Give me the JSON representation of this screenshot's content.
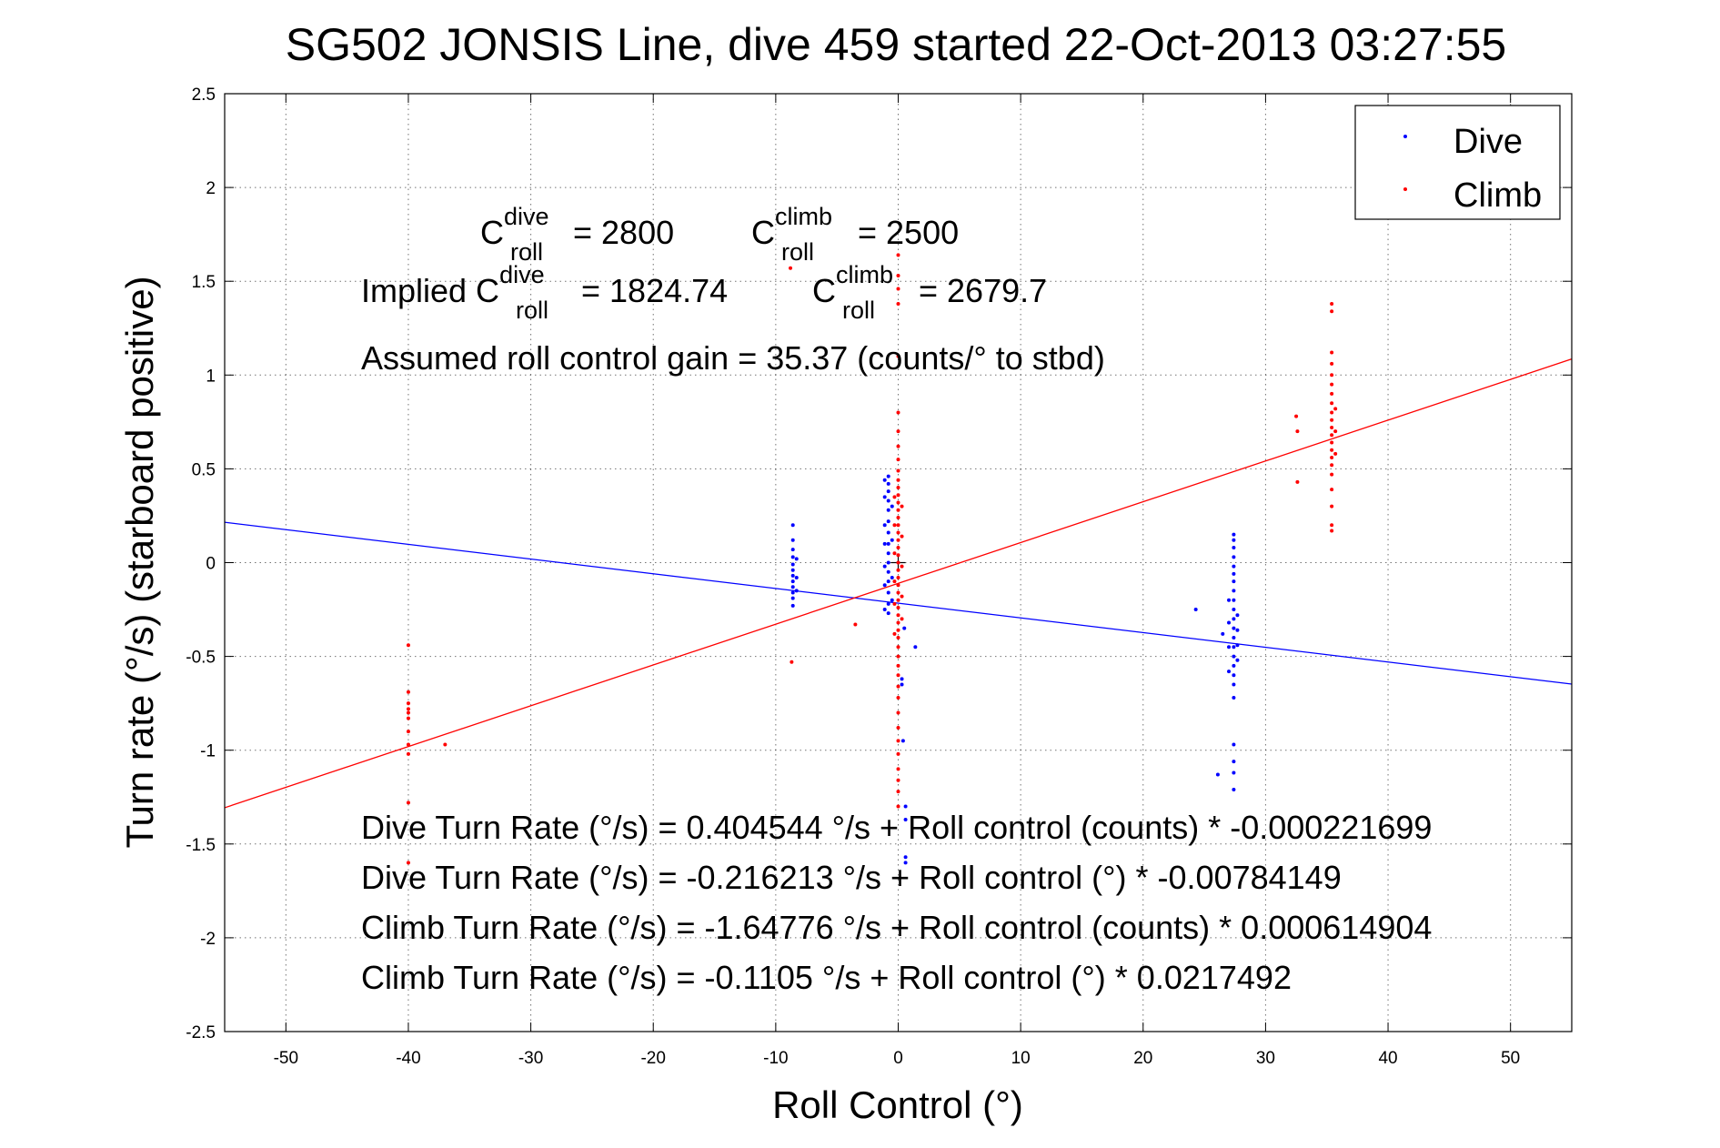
{
  "chart_data": {
    "type": "scatter",
    "title": "SG502 JONSIS Line, dive 459 started 22-Oct-2013 03:27:55",
    "xlabel": "Roll Control (°)",
    "ylabel": "Turn rate (°/s) (starboard positive)",
    "xlim": [
      -55,
      55
    ],
    "ylim": [
      -2.5,
      2.5
    ],
    "xticks": [
      -50,
      -40,
      -30,
      -20,
      -10,
      0,
      10,
      20,
      30,
      40,
      50
    ],
    "yticks": [
      -2.5,
      -2,
      -1.5,
      -1,
      -0.5,
      0,
      0.5,
      1,
      1.5,
      2,
      2.5
    ],
    "xtick_labels": [
      "-50",
      "-40",
      "-30",
      "-20",
      "-10",
      "0",
      "10",
      "20",
      "30",
      "40",
      "50"
    ],
    "ytick_labels": [
      "-2.5",
      "-2",
      "-1.5",
      "-1",
      "-0.5",
      "0",
      "0.5",
      "1",
      "1.5",
      "2",
      "2.5"
    ],
    "grid": true,
    "legend_position": "top-right",
    "colors": {
      "dive": "#0000ff",
      "climb": "#ff0000"
    },
    "legend": {
      "dive": "Dive",
      "climb": "Climb"
    },
    "series": [
      {
        "name": "Dive",
        "color": "#0000ff",
        "points": [
          [
            -8.6,
            0.2
          ],
          [
            -8.6,
            0.12
          ],
          [
            -8.6,
            0.07
          ],
          [
            -8.6,
            0.03
          ],
          [
            -8.6,
            -0.01
          ],
          [
            -8.6,
            -0.04
          ],
          [
            -8.6,
            -0.07
          ],
          [
            -8.6,
            -0.1
          ],
          [
            -8.6,
            -0.13
          ],
          [
            -8.6,
            -0.16
          ],
          [
            -8.6,
            -0.19
          ],
          [
            -8.6,
            -0.23
          ],
          [
            -8.3,
            0.02
          ],
          [
            -8.3,
            -0.08
          ],
          [
            -8.3,
            -0.15
          ],
          [
            -0.8,
            0.46
          ],
          [
            -0.8,
            0.42
          ],
          [
            -0.8,
            0.38
          ],
          [
            -0.8,
            0.33
          ],
          [
            -0.8,
            0.28
          ],
          [
            -0.8,
            0.22
          ],
          [
            -0.8,
            0.16
          ],
          [
            -0.8,
            0.1
          ],
          [
            -0.8,
            0.05
          ],
          [
            -0.8,
            0.0
          ],
          [
            -0.8,
            -0.05
          ],
          [
            -0.8,
            -0.1
          ],
          [
            -0.8,
            -0.16
          ],
          [
            -0.8,
            -0.22
          ],
          [
            -0.8,
            -0.27
          ],
          [
            -1.1,
            0.44
          ],
          [
            -1.1,
            0.35
          ],
          [
            -1.1,
            0.2
          ],
          [
            -1.1,
            0.1
          ],
          [
            -1.1,
            -0.02
          ],
          [
            -1.1,
            -0.12
          ],
          [
            -1.1,
            -0.25
          ],
          [
            -0.5,
            0.3
          ],
          [
            -0.5,
            0.12
          ],
          [
            -0.5,
            -0.08
          ],
          [
            -0.5,
            -0.2
          ],
          [
            0.3,
            -0.62
          ],
          [
            0.3,
            -0.65
          ],
          [
            0.4,
            -0.95
          ],
          [
            0.6,
            -1.3
          ],
          [
            0.6,
            -1.37
          ],
          [
            0.6,
            -1.57
          ],
          [
            0.6,
            -1.6
          ],
          [
            0.5,
            -0.35
          ],
          [
            1.4,
            -0.45
          ],
          [
            24.3,
            -0.25
          ],
          [
            26.1,
            -1.13
          ],
          [
            26.5,
            -0.38
          ],
          [
            27.0,
            -0.2
          ],
          [
            27.0,
            -0.32
          ],
          [
            27.0,
            -0.45
          ],
          [
            27.0,
            -0.58
          ],
          [
            27.4,
            0.15
          ],
          [
            27.4,
            0.12
          ],
          [
            27.4,
            0.08
          ],
          [
            27.4,
            0.03
          ],
          [
            27.4,
            -0.02
          ],
          [
            27.4,
            -0.06
          ],
          [
            27.4,
            -0.1
          ],
          [
            27.4,
            -0.15
          ],
          [
            27.4,
            -0.2
          ],
          [
            27.4,
            -0.25
          ],
          [
            27.4,
            -0.3
          ],
          [
            27.4,
            -0.35
          ],
          [
            27.4,
            -0.4
          ],
          [
            27.4,
            -0.45
          ],
          [
            27.4,
            -0.5
          ],
          [
            27.4,
            -0.55
          ],
          [
            27.4,
            -0.6
          ],
          [
            27.4,
            -0.65
          ],
          [
            27.4,
            -0.72
          ],
          [
            27.4,
            -0.97
          ],
          [
            27.4,
            -1.06
          ],
          [
            27.4,
            -1.12
          ],
          [
            27.4,
            -1.21
          ],
          [
            27.7,
            -0.28
          ],
          [
            27.7,
            -0.36
          ],
          [
            27.7,
            -0.44
          ],
          [
            27.7,
            -0.52
          ]
        ]
      },
      {
        "name": "Climb",
        "color": "#ff0000",
        "points": [
          [
            -40.0,
            -0.44
          ],
          [
            -40.0,
            -0.69
          ],
          [
            -40.0,
            -0.75
          ],
          [
            -40.0,
            -0.78
          ],
          [
            -40.0,
            -0.8
          ],
          [
            -40.0,
            -0.83
          ],
          [
            -40.0,
            -0.9
          ],
          [
            -40.0,
            -0.97
          ],
          [
            -40.0,
            -1.02
          ],
          [
            -40.0,
            -1.28
          ],
          [
            -40.0,
            -1.6
          ],
          [
            -37.0,
            -0.97
          ],
          [
            -8.7,
            -0.53
          ],
          [
            -3.5,
            -0.33
          ],
          [
            -8.8,
            1.57
          ],
          [
            0.0,
            1.64
          ],
          [
            0.0,
            1.53
          ],
          [
            0.0,
            1.46
          ],
          [
            0.0,
            1.38
          ],
          [
            0.0,
            1.1
          ],
          [
            0.0,
            0.8
          ],
          [
            0.0,
            0.7
          ],
          [
            0.0,
            0.62
          ],
          [
            0.0,
            0.55
          ],
          [
            0.0,
            0.49
          ],
          [
            0.0,
            0.44
          ],
          [
            0.0,
            0.4
          ],
          [
            0.0,
            0.36
          ],
          [
            0.0,
            0.32
          ],
          [
            0.0,
            0.28
          ],
          [
            0.0,
            0.24
          ],
          [
            0.0,
            0.2
          ],
          [
            0.0,
            0.16
          ],
          [
            0.0,
            0.12
          ],
          [
            0.0,
            0.08
          ],
          [
            0.0,
            0.04
          ],
          [
            0.0,
            0.0
          ],
          [
            0.0,
            -0.04
          ],
          [
            0.0,
            -0.08
          ],
          [
            0.0,
            -0.12
          ],
          [
            0.0,
            -0.16
          ],
          [
            0.0,
            -0.2
          ],
          [
            0.0,
            -0.24
          ],
          [
            0.0,
            -0.28
          ],
          [
            0.0,
            -0.32
          ],
          [
            0.0,
            -0.36
          ],
          [
            0.0,
            -0.4
          ],
          [
            0.0,
            -0.45
          ],
          [
            0.0,
            -0.5
          ],
          [
            0.0,
            -0.55
          ],
          [
            0.0,
            -0.6
          ],
          [
            0.0,
            -0.66
          ],
          [
            0.0,
            -0.72
          ],
          [
            0.0,
            -0.8
          ],
          [
            0.0,
            -0.88
          ],
          [
            0.0,
            -0.95
          ],
          [
            0.0,
            -1.02
          ],
          [
            0.0,
            -1.1
          ],
          [
            0.0,
            -1.16
          ],
          [
            0.0,
            -1.22
          ],
          [
            0.0,
            -1.3
          ],
          [
            -0.3,
            0.35
          ],
          [
            -0.3,
            0.2
          ],
          [
            -0.3,
            0.05
          ],
          [
            -0.3,
            -0.1
          ],
          [
            -0.3,
            -0.22
          ],
          [
            -0.3,
            -0.38
          ],
          [
            0.3,
            0.3
          ],
          [
            0.3,
            0.14
          ],
          [
            0.3,
            -0.02
          ],
          [
            0.3,
            -0.18
          ],
          [
            0.3,
            -0.3
          ],
          [
            32.5,
            0.78
          ],
          [
            32.6,
            0.7
          ],
          [
            32.6,
            0.43
          ],
          [
            35.4,
            1.38
          ],
          [
            35.4,
            1.34
          ],
          [
            35.4,
            1.12
          ],
          [
            35.4,
            1.06
          ],
          [
            35.4,
            1.0
          ],
          [
            35.4,
            0.95
          ],
          [
            35.4,
            0.9
          ],
          [
            35.4,
            0.85
          ],
          [
            35.4,
            0.8
          ],
          [
            35.4,
            0.76
          ],
          [
            35.4,
            0.72
          ],
          [
            35.4,
            0.68
          ],
          [
            35.4,
            0.64
          ],
          [
            35.4,
            0.6
          ],
          [
            35.4,
            0.56
          ],
          [
            35.4,
            0.52
          ],
          [
            35.4,
            0.47
          ],
          [
            35.4,
            0.39
          ],
          [
            35.4,
            0.3
          ],
          [
            35.4,
            0.2
          ],
          [
            35.4,
            0.17
          ],
          [
            35.7,
            0.82
          ],
          [
            35.7,
            0.7
          ],
          [
            35.7,
            0.58
          ]
        ]
      }
    ],
    "fit_lines": [
      {
        "name": "Dive fit",
        "color": "#0000ff",
        "intercept": -0.216213,
        "slope": -0.00784149
      },
      {
        "name": "Climb fit",
        "color": "#ff0000",
        "intercept": -0.1105,
        "slope": 0.0217492
      }
    ],
    "origin_marker": [
      0,
      0
    ],
    "annotations": {
      "c_roll_dive": {
        "base": "C",
        "sup": "dive",
        "sub": "roll",
        "value": "= 2800"
      },
      "c_roll_climb": {
        "base": "C",
        "sup": "climb",
        "sub": "roll",
        "value": "= 2500"
      },
      "implied_prefix": "Implied C",
      "implied_dive": {
        "sup": "dive",
        "sub": "roll",
        "value": "= 1824.74"
      },
      "implied_climb": {
        "base": "C",
        "sup": "climb",
        "sub": "roll",
        "value": "= 2679.7"
      },
      "gain_text": "Assumed roll control gain = 35.37 (counts/° to stbd)",
      "equations": [
        "Dive Turn Rate (°/s) = 0.404544 °/s + Roll control (counts) * -0.000221699",
        "Dive Turn Rate (°/s) = -0.216213 °/s + Roll control (°) * -0.00784149",
        "Climb Turn Rate (°/s) = -1.64776 °/s + Roll control (counts) * 0.000614904",
        "Climb Turn Rate (°/s) = -0.1105 °/s + Roll control (°) * 0.0217492"
      ]
    }
  }
}
